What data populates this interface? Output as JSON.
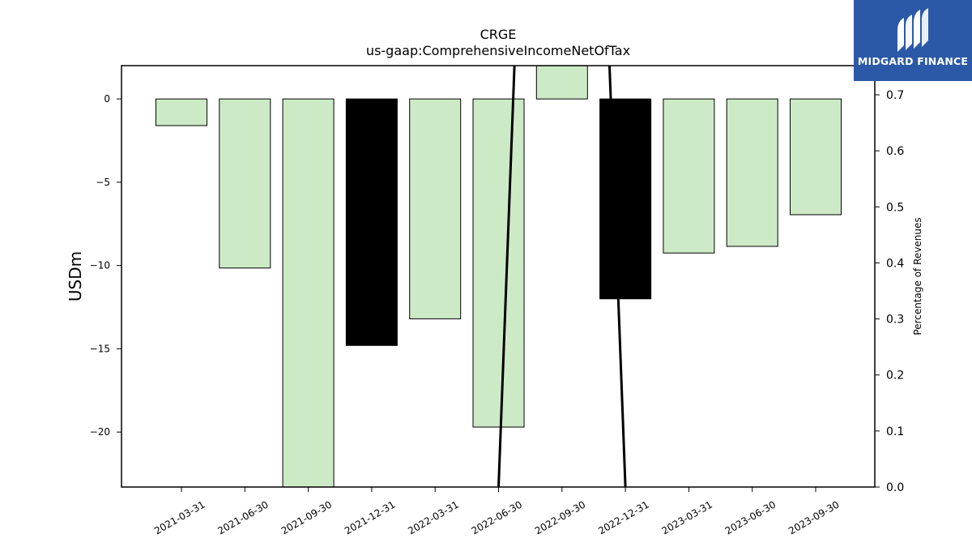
{
  "chart_data": {
    "type": "bar",
    "title": "CRGE",
    "subtitle": "us-gaap:ComprehensiveIncomeNetOfTax",
    "ylabel": "USDm",
    "y2label": "Percentage of Revenues",
    "categories": [
      "2021-03-31",
      "2021-06-30",
      "2021-09-30",
      "2021-12-31",
      "2022-03-31",
      "2022-06-30",
      "2022-09-30",
      "2022-12-31",
      "2023-03-31",
      "2023-06-30",
      "2023-09-30"
    ],
    "values": [
      -1.6,
      -10.15,
      -23.3,
      -14.8,
      -13.2,
      -19.7,
      2.5,
      -12.0,
      -9.25,
      -8.85,
      -6.95
    ],
    "bar_colors": [
      "#cdeac7",
      "#cdeac7",
      "#cdeac7",
      "#000000",
      "#cdeac7",
      "#cdeac7",
      "#cdeac7",
      "#000000",
      "#cdeac7",
      "#cdeac7",
      "#cdeac7"
    ],
    "ylim": [
      -23.3,
      2.0
    ],
    "yticks": [
      0,
      -5,
      -10,
      -15,
      -20
    ],
    "ytick_labels": [
      "0",
      "−5",
      "−10",
      "−15",
      "−20"
    ],
    "y2lim": [
      0.0,
      0.7
    ],
    "y2ticks": [
      0.0,
      0.1,
      0.2,
      0.3,
      0.4,
      0.5,
      0.6,
      0.7
    ],
    "y2tick_labels": [
      "0.0",
      "0.1",
      "0.2",
      "0.3",
      "0.4",
      "0.5",
      "0.6",
      "0.7"
    ],
    "percentage_line": {
      "x": [
        "2022-06-30",
        "2022-09-30",
        "2022-12-31"
      ],
      "y": [
        0.0,
        3.0,
        0.0
      ]
    },
    "grid": false,
    "legend": "none"
  },
  "logo": {
    "text": "MIDGARD FINANCE",
    "icon": "midgard-logo-icon",
    "background": "#2b59a8"
  }
}
